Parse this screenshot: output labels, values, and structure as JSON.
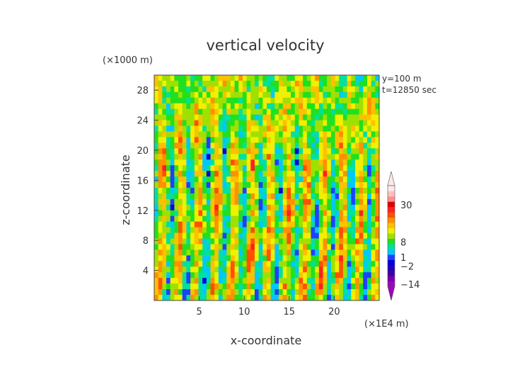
{
  "chart_data": {
    "type": "heatmap",
    "title": "vertical velocity",
    "xlabel": "x-coordinate",
    "ylabel": "z-coordinate",
    "x_unit": "(×1E4 m)",
    "y_unit": "(×1000 m)",
    "annotations": [
      "y=100 m",
      "t=12850 sec"
    ],
    "x_ticks": [
      5,
      10,
      15,
      20
    ],
    "y_ticks": [
      4,
      8,
      12,
      16,
      20,
      24,
      28
    ],
    "xlim": [
      0,
      25
    ],
    "ylim": [
      0,
      30
    ],
    "colorbar": {
      "labels": [
        {
          "text": "30",
          "value": 30
        },
        {
          "text": "8",
          "value": 8
        },
        {
          "text": "1",
          "value": 1
        },
        {
          "text": "−2",
          "value": -2
        },
        {
          "text": "−14",
          "value": -14
        }
      ],
      "colors": [
        "#a000c0",
        "#7000b0",
        "#4000a0",
        "#2000c0",
        "#0000e0",
        "#2040ff",
        "#00c8ff",
        "#00e0a0",
        "#20e020",
        "#a0e000",
        "#f0f000",
        "#ffc000",
        "#ff9000",
        "#ff5000",
        "#ff2020",
        "#e00000",
        "#ff9090",
        "#ffc0c0",
        "#ffe8e8"
      ]
    },
    "field_description_colors": {
      "dominant": "#f0f000",
      "updraft": "#ff5000",
      "downdraft": "#0000e0"
    }
  }
}
